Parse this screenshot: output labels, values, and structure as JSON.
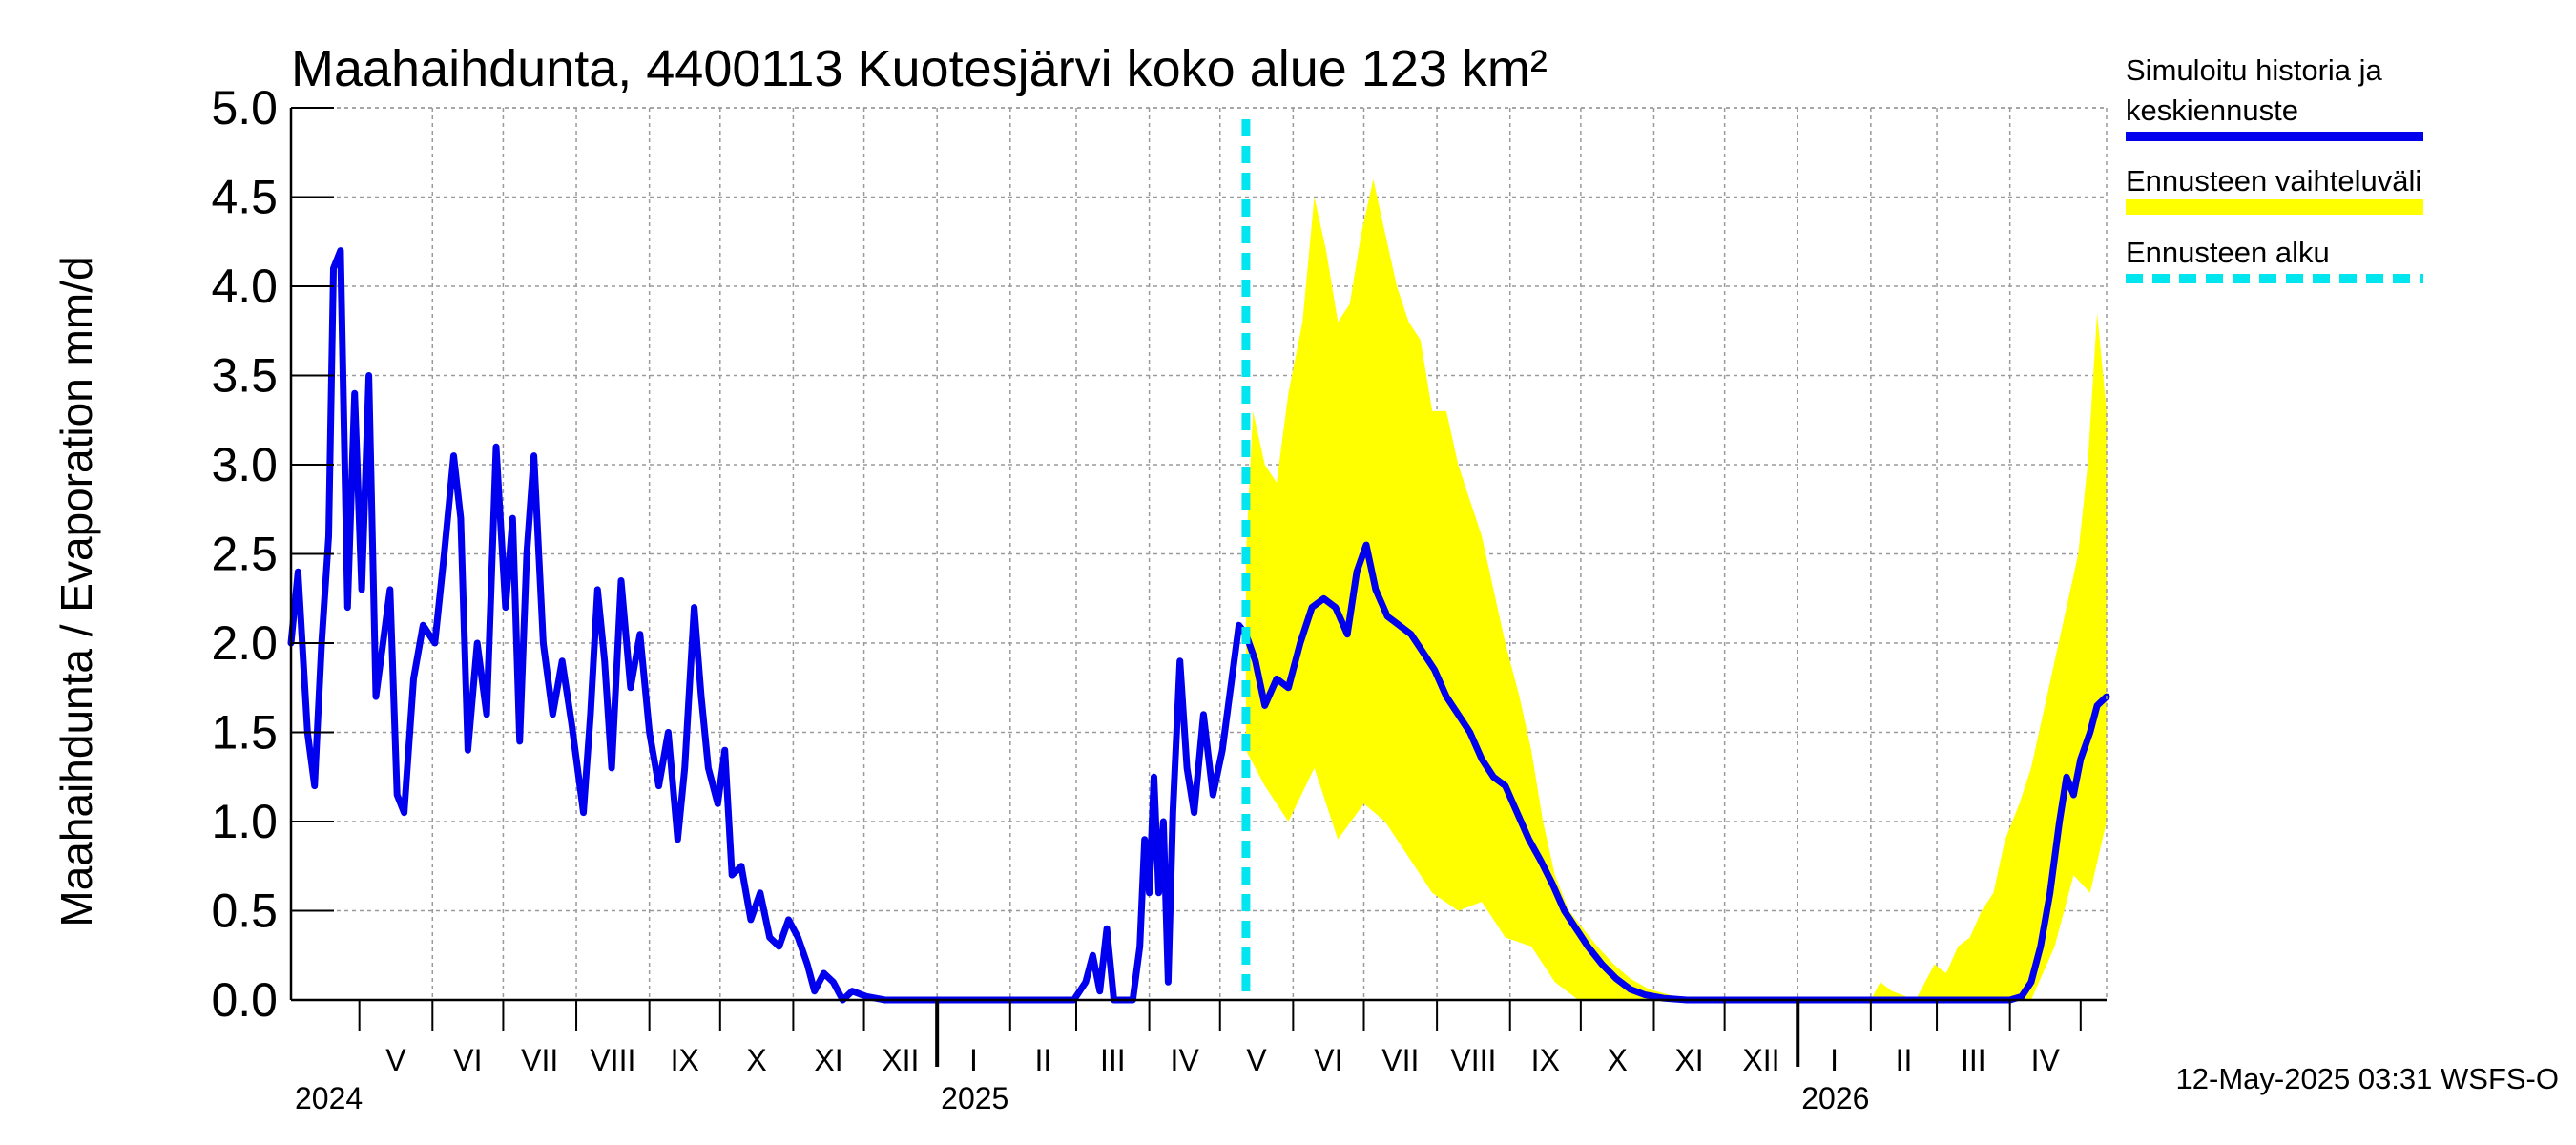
{
  "chart_data": {
    "type": "line",
    "title": "Maahaihdunta, 4400113 Kuotesjärvi koko alue 123 km²",
    "ylabel": "Maahaihdunta / Evaporation   mm/d",
    "ylim": [
      0.0,
      5.0
    ],
    "y_ticks": [
      "0.0",
      "0.5",
      "1.0",
      "1.5",
      "2.0",
      "2.5",
      "3.0",
      "3.5",
      "4.0",
      "4.5",
      "5.0"
    ],
    "x_range": [
      "2024-04-02",
      "2026-05-12"
    ],
    "grid": true,
    "legend_placement": "right",
    "months": [
      {
        "label": "V",
        "start": "2024-05-01",
        "end": "2024-06-01"
      },
      {
        "label": "VI",
        "start": "2024-06-01",
        "end": "2024-07-01"
      },
      {
        "label": "VII",
        "start": "2024-07-01",
        "end": "2024-08-01"
      },
      {
        "label": "VIII",
        "start": "2024-08-01",
        "end": "2024-09-01"
      },
      {
        "label": "IX",
        "start": "2024-09-01",
        "end": "2024-10-01"
      },
      {
        "label": "X",
        "start": "2024-10-01",
        "end": "2024-11-01"
      },
      {
        "label": "XI",
        "start": "2024-11-01",
        "end": "2024-12-01"
      },
      {
        "label": "XII",
        "start": "2024-12-01",
        "end": "2025-01-01"
      },
      {
        "label": "I",
        "start": "2025-01-01",
        "end": "2025-02-01"
      },
      {
        "label": "II",
        "start": "2025-02-01",
        "end": "2025-03-01"
      },
      {
        "label": "III",
        "start": "2025-03-01",
        "end": "2025-04-01"
      },
      {
        "label": "IV",
        "start": "2025-04-01",
        "end": "2025-05-01"
      },
      {
        "label": "V",
        "start": "2025-05-01",
        "end": "2025-06-01"
      },
      {
        "label": "VI",
        "start": "2025-06-01",
        "end": "2025-07-01"
      },
      {
        "label": "VII",
        "start": "2025-07-01",
        "end": "2025-08-01"
      },
      {
        "label": "VIII",
        "start": "2025-08-01",
        "end": "2025-09-01"
      },
      {
        "label": "IX",
        "start": "2025-09-01",
        "end": "2025-10-01"
      },
      {
        "label": "X",
        "start": "2025-10-01",
        "end": "2025-11-01"
      },
      {
        "label": "XI",
        "start": "2025-11-01",
        "end": "2025-12-01"
      },
      {
        "label": "XII",
        "start": "2025-12-01",
        "end": "2026-01-01"
      },
      {
        "label": "I",
        "start": "2026-01-01",
        "end": "2026-02-01"
      },
      {
        "label": "II",
        "start": "2026-02-01",
        "end": "2026-03-01"
      },
      {
        "label": "III",
        "start": "2026-03-01",
        "end": "2026-04-01"
      },
      {
        "label": "IV",
        "start": "2026-04-01",
        "end": "2026-05-01"
      }
    ],
    "years": [
      {
        "label": "2024",
        "date": "2024-04-02"
      },
      {
        "label": "2025",
        "date": "2025-01-01"
      },
      {
        "label": "2026",
        "date": "2026-01-01"
      }
    ],
    "forecast_start": "2025-05-12",
    "series": [
      {
        "name": "Simuloitu historia ja keskiennuste",
        "color": "#0000ee",
        "points": [
          [
            "2024-04-02",
            2.0
          ],
          [
            "2024-04-05",
            2.4
          ],
          [
            "2024-04-09",
            1.5
          ],
          [
            "2024-04-12",
            1.2
          ],
          [
            "2024-04-15",
            2.0
          ],
          [
            "2024-04-18",
            2.6
          ],
          [
            "2024-04-20",
            4.1
          ],
          [
            "2024-04-23",
            4.2
          ],
          [
            "2024-04-26",
            2.2
          ],
          [
            "2024-04-29",
            3.4
          ],
          [
            "2024-05-02",
            2.3
          ],
          [
            "2024-05-05",
            3.5
          ],
          [
            "2024-05-08",
            1.7
          ],
          [
            "2024-05-11",
            2.0
          ],
          [
            "2024-05-14",
            2.3
          ],
          [
            "2024-05-17",
            1.15
          ],
          [
            "2024-05-20",
            1.05
          ],
          [
            "2024-05-24",
            1.8
          ],
          [
            "2024-05-28",
            2.1
          ],
          [
            "2024-06-02",
            2.0
          ],
          [
            "2024-06-06",
            2.5
          ],
          [
            "2024-06-10",
            3.05
          ],
          [
            "2024-06-13",
            2.7
          ],
          [
            "2024-06-16",
            1.4
          ],
          [
            "2024-06-20",
            2.0
          ],
          [
            "2024-06-24",
            1.6
          ],
          [
            "2024-06-28",
            3.1
          ],
          [
            "2024-07-02",
            2.2
          ],
          [
            "2024-07-05",
            2.7
          ],
          [
            "2024-07-08",
            1.45
          ],
          [
            "2024-07-11",
            2.5
          ],
          [
            "2024-07-14",
            3.05
          ],
          [
            "2024-07-18",
            2.0
          ],
          [
            "2024-07-22",
            1.6
          ],
          [
            "2024-07-26",
            1.9
          ],
          [
            "2024-07-30",
            1.55
          ],
          [
            "2024-08-04",
            1.05
          ],
          [
            "2024-08-07",
            1.6
          ],
          [
            "2024-08-10",
            2.3
          ],
          [
            "2024-08-13",
            1.9
          ],
          [
            "2024-08-16",
            1.3
          ],
          [
            "2024-08-20",
            2.35
          ],
          [
            "2024-08-24",
            1.75
          ],
          [
            "2024-08-28",
            2.05
          ],
          [
            "2024-09-01",
            1.5
          ],
          [
            "2024-09-05",
            1.2
          ],
          [
            "2024-09-09",
            1.5
          ],
          [
            "2024-09-13",
            0.9
          ],
          [
            "2024-09-16",
            1.3
          ],
          [
            "2024-09-20",
            2.2
          ],
          [
            "2024-09-23",
            1.7
          ],
          [
            "2024-09-26",
            1.3
          ],
          [
            "2024-09-30",
            1.1
          ],
          [
            "2024-10-03",
            1.4
          ],
          [
            "2024-10-06",
            0.7
          ],
          [
            "2024-10-10",
            0.75
          ],
          [
            "2024-10-14",
            0.45
          ],
          [
            "2024-10-18",
            0.6
          ],
          [
            "2024-10-22",
            0.35
          ],
          [
            "2024-10-26",
            0.3
          ],
          [
            "2024-10-30",
            0.45
          ],
          [
            "2024-11-03",
            0.35
          ],
          [
            "2024-11-07",
            0.2
          ],
          [
            "2024-11-10",
            0.05
          ],
          [
            "2024-11-14",
            0.15
          ],
          [
            "2024-11-18",
            0.1
          ],
          [
            "2024-11-22",
            0.0
          ],
          [
            "2024-11-26",
            0.05
          ],
          [
            "2024-12-02",
            0.02
          ],
          [
            "2024-12-10",
            0.0
          ],
          [
            "2025-01-01",
            0.0
          ],
          [
            "2025-02-01",
            0.0
          ],
          [
            "2025-02-28",
            0.0
          ],
          [
            "2025-03-05",
            0.1
          ],
          [
            "2025-03-08",
            0.25
          ],
          [
            "2025-03-11",
            0.05
          ],
          [
            "2025-03-14",
            0.4
          ],
          [
            "2025-03-17",
            0.0
          ],
          [
            "2025-03-25",
            0.0
          ],
          [
            "2025-03-28",
            0.3
          ],
          [
            "2025-03-30",
            0.9
          ],
          [
            "2025-04-01",
            0.6
          ],
          [
            "2025-04-03",
            1.25
          ],
          [
            "2025-04-05",
            0.6
          ],
          [
            "2025-04-07",
            1.0
          ],
          [
            "2025-04-09",
            0.1
          ],
          [
            "2025-04-11",
            1.05
          ],
          [
            "2025-04-14",
            1.9
          ],
          [
            "2025-04-17",
            1.3
          ],
          [
            "2025-04-20",
            1.05
          ],
          [
            "2025-04-24",
            1.6
          ],
          [
            "2025-04-28",
            1.15
          ],
          [
            "2025-05-02",
            1.4
          ],
          [
            "2025-05-06",
            1.8
          ],
          [
            "2025-05-09",
            2.1
          ],
          [
            "2025-05-12",
            2.05
          ],
          [
            "2025-05-16",
            1.9
          ],
          [
            "2025-05-20",
            1.65
          ],
          [
            "2025-05-25",
            1.8
          ],
          [
            "2025-05-30",
            1.75
          ],
          [
            "2025-06-04",
            2.0
          ],
          [
            "2025-06-09",
            2.2
          ],
          [
            "2025-06-14",
            2.25
          ],
          [
            "2025-06-19",
            2.2
          ],
          [
            "2025-06-24",
            2.05
          ],
          [
            "2025-06-28",
            2.4
          ],
          [
            "2025-07-02",
            2.55
          ],
          [
            "2025-07-06",
            2.3
          ],
          [
            "2025-07-11",
            2.15
          ],
          [
            "2025-07-16",
            2.1
          ],
          [
            "2025-07-21",
            2.05
          ],
          [
            "2025-07-26",
            1.95
          ],
          [
            "2025-07-31",
            1.85
          ],
          [
            "2025-08-05",
            1.7
          ],
          [
            "2025-08-10",
            1.6
          ],
          [
            "2025-08-15",
            1.5
          ],
          [
            "2025-08-20",
            1.35
          ],
          [
            "2025-08-25",
            1.25
          ],
          [
            "2025-08-30",
            1.2
          ],
          [
            "2025-09-04",
            1.05
          ],
          [
            "2025-09-09",
            0.9
          ],
          [
            "2025-09-14",
            0.78
          ],
          [
            "2025-09-19",
            0.65
          ],
          [
            "2025-09-24",
            0.5
          ],
          [
            "2025-09-29",
            0.4
          ],
          [
            "2025-10-04",
            0.3
          ],
          [
            "2025-10-10",
            0.2
          ],
          [
            "2025-10-16",
            0.12
          ],
          [
            "2025-10-22",
            0.06
          ],
          [
            "2025-10-28",
            0.03
          ],
          [
            "2025-11-05",
            0.01
          ],
          [
            "2025-11-15",
            0.0
          ],
          [
            "2026-04-01",
            0.0
          ],
          [
            "2026-04-06",
            0.02
          ],
          [
            "2026-04-10",
            0.1
          ],
          [
            "2026-04-14",
            0.3
          ],
          [
            "2026-04-18",
            0.6
          ],
          [
            "2026-04-22",
            1.0
          ],
          [
            "2026-04-25",
            1.25
          ],
          [
            "2026-04-28",
            1.15
          ],
          [
            "2026-05-01",
            1.35
          ],
          [
            "2026-05-05",
            1.5
          ],
          [
            "2026-05-08",
            1.65
          ],
          [
            "2026-05-12",
            1.7
          ]
        ]
      },
      {
        "name": "Ennusteen vaihteluväli",
        "color": "#ffff00",
        "upper": [
          [
            "2025-05-12",
            2.5
          ],
          [
            "2025-05-15",
            3.3
          ],
          [
            "2025-05-20",
            3.0
          ],
          [
            "2025-05-25",
            2.9
          ],
          [
            "2025-05-30",
            3.4
          ],
          [
            "2025-06-05",
            3.8
          ],
          [
            "2025-06-10",
            4.5
          ],
          [
            "2025-06-15",
            4.2
          ],
          [
            "2025-06-20",
            3.8
          ],
          [
            "2025-06-25",
            3.9
          ],
          [
            "2025-06-30",
            4.3
          ],
          [
            "2025-07-05",
            4.6
          ],
          [
            "2025-07-10",
            4.3
          ],
          [
            "2025-07-15",
            4.0
          ],
          [
            "2025-07-20",
            3.8
          ],
          [
            "2025-07-25",
            3.7
          ],
          [
            "2025-07-30",
            3.3
          ],
          [
            "2025-08-05",
            3.3
          ],
          [
            "2025-08-10",
            3.0
          ],
          [
            "2025-08-15",
            2.8
          ],
          [
            "2025-08-20",
            2.6
          ],
          [
            "2025-08-25",
            2.3
          ],
          [
            "2025-08-30",
            2.0
          ],
          [
            "2025-09-05",
            1.7
          ],
          [
            "2025-09-10",
            1.4
          ],
          [
            "2025-09-15",
            1.0
          ],
          [
            "2025-09-20",
            0.7
          ],
          [
            "2025-09-26",
            0.5
          ],
          [
            "2025-10-02",
            0.4
          ],
          [
            "2025-10-08",
            0.3
          ],
          [
            "2025-10-15",
            0.2
          ],
          [
            "2025-10-22",
            0.12
          ],
          [
            "2025-10-30",
            0.06
          ],
          [
            "2025-11-10",
            0.02
          ],
          [
            "2025-11-20",
            0.0
          ],
          [
            "2026-02-01",
            0.0
          ],
          [
            "2026-02-05",
            0.1
          ],
          [
            "2026-02-10",
            0.05
          ],
          [
            "2026-02-20",
            0.0
          ],
          [
            "2026-02-28",
            0.2
          ],
          [
            "2026-03-05",
            0.15
          ],
          [
            "2026-03-10",
            0.3
          ],
          [
            "2026-03-15",
            0.35
          ],
          [
            "2026-03-20",
            0.5
          ],
          [
            "2026-03-25",
            0.6
          ],
          [
            "2026-03-30",
            0.9
          ],
          [
            "2026-04-05",
            1.1
          ],
          [
            "2026-04-10",
            1.3
          ],
          [
            "2026-04-15",
            1.6
          ],
          [
            "2026-04-20",
            1.9
          ],
          [
            "2026-04-25",
            2.2
          ],
          [
            "2026-04-30",
            2.5
          ],
          [
            "2026-05-04",
            3.0
          ],
          [
            "2026-05-08",
            3.85
          ],
          [
            "2026-05-12",
            3.3
          ]
        ],
        "lower": [
          [
            "2025-05-12",
            1.4
          ],
          [
            "2025-05-20",
            1.2
          ],
          [
            "2025-05-30",
            1.0
          ],
          [
            "2025-06-10",
            1.3
          ],
          [
            "2025-06-20",
            0.9
          ],
          [
            "2025-07-01",
            1.1
          ],
          [
            "2025-07-10",
            1.0
          ],
          [
            "2025-07-20",
            0.8
          ],
          [
            "2025-07-30",
            0.6
          ],
          [
            "2025-08-10",
            0.5
          ],
          [
            "2025-08-20",
            0.55
          ],
          [
            "2025-08-30",
            0.35
          ],
          [
            "2025-09-10",
            0.3
          ],
          [
            "2025-09-20",
            0.1
          ],
          [
            "2025-09-30",
            0.0
          ],
          [
            "2026-04-10",
            0.0
          ],
          [
            "2026-04-20",
            0.3
          ],
          [
            "2026-04-28",
            0.7
          ],
          [
            "2026-05-05",
            0.6
          ],
          [
            "2026-05-12",
            1.0
          ]
        ]
      },
      {
        "name": "Ennusteen alku",
        "color": "#00e5ee"
      }
    ]
  },
  "legend": {
    "history_line1": "Simuloitu historia ja",
    "history_line2": "keskiennuste",
    "range_label": "Ennusteen vaihteluväli",
    "start_label": "Ennusteen alku"
  },
  "footer": "12-May-2025 03:31 WSFS-O"
}
